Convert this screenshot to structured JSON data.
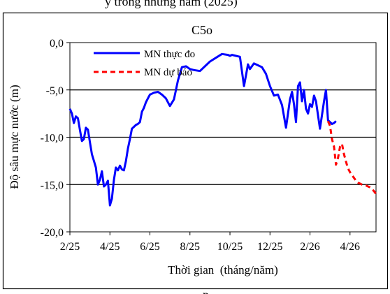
{
  "header": {
    "caption_fragment": "y trong những năm (2025)"
  },
  "footer": {
    "caption_fragment": "p"
  },
  "chart_data": {
    "type": "line",
    "title": "C5o",
    "xlabel": "Thời gian  (tháng/năm)",
    "ylabel": "Độ sâu mực nước (m)",
    "x_tick_labels": [
      "2/25",
      "4/25",
      "6/25",
      "8/25",
      "10/25",
      "12/25",
      "2/26",
      "4/26"
    ],
    "y_tick_labels": [
      "0,0",
      "-5,0",
      "-10,0",
      "-15,0",
      "-20,0"
    ],
    "y_ticks": [
      0,
      -5,
      -10,
      -15,
      -20
    ],
    "ylim": [
      -20,
      0
    ],
    "x_unit": "months since 2/25",
    "xlim": [
      0,
      15.3
    ],
    "grid": "horizontal",
    "legend_position": "top-left",
    "series": [
      {
        "name": "MN thực đo",
        "color": "#0000ff",
        "style": "solid",
        "x": [
          0,
          0.1,
          0.2,
          0.3,
          0.4,
          0.5,
          0.6,
          0.7,
          0.8,
          0.9,
          1.0,
          1.1,
          1.2,
          1.3,
          1.4,
          1.5,
          1.6,
          1.7,
          1.8,
          1.9,
          2.0,
          2.1,
          2.2,
          2.3,
          2.4,
          2.5,
          2.6,
          2.7,
          2.8,
          2.9,
          3.0,
          3.1,
          3.2,
          3.3,
          3.4,
          3.5,
          3.6,
          3.7,
          3.8,
          3.9,
          4.0,
          4.2,
          4.4,
          4.6,
          4.8,
          5.0,
          5.2,
          5.4,
          5.6,
          5.8,
          6.0,
          6.2,
          6.5,
          6.8,
          7.0,
          7.3,
          7.6,
          7.9,
          8.0,
          8.1,
          8.3,
          8.5,
          8.7,
          8.9,
          9.0,
          9.2,
          9.4,
          9.6,
          9.8,
          10.0,
          10.2,
          10.4,
          10.6,
          10.8,
          11.0,
          11.1,
          11.2,
          11.3,
          11.4,
          11.5,
          11.6,
          11.7,
          11.8,
          11.9,
          12.0,
          12.1,
          12.2,
          12.3,
          12.5,
          12.7,
          12.8,
          12.9,
          13.0,
          13.1,
          13.2,
          13.3
        ],
        "values": [
          -7.0,
          -7.5,
          -8.5,
          -7.8,
          -8.0,
          -9.2,
          -10.4,
          -10.2,
          -9.0,
          -9.2,
          -10.5,
          -11.8,
          -12.5,
          -13.2,
          -15.0,
          -14.5,
          -13.6,
          -15.2,
          -15.0,
          -14.6,
          -17.2,
          -16.5,
          -14.5,
          -13.2,
          -13.5,
          -13.0,
          -13.4,
          -13.5,
          -12.5,
          -11.2,
          -10.2,
          -9.1,
          -8.9,
          -8.7,
          -8.6,
          -8.4,
          -7.3,
          -6.9,
          -6.3,
          -5.9,
          -5.5,
          -5.3,
          -5.2,
          -5.5,
          -5.9,
          -6.7,
          -6.0,
          -4.0,
          -2.6,
          -2.5,
          -2.8,
          -2.9,
          -3.0,
          -2.4,
          -2.0,
          -1.6,
          -1.2,
          -1.3,
          -1.4,
          -1.3,
          -1.4,
          -1.5,
          -4.6,
          -2.3,
          -2.8,
          -2.2,
          -2.4,
          -2.6,
          -3.3,
          -4.6,
          -5.6,
          -5.5,
          -6.6,
          -9.0,
          -6.0,
          -5.2,
          -6.5,
          -8.4,
          -4.6,
          -4.2,
          -6.2,
          -5.0,
          -7.0,
          -7.5,
          -6.5,
          -6.8,
          -5.6,
          -6.2,
          -9.1,
          -6.2,
          -5.0,
          -8.2,
          -8.4,
          -8.6,
          -8.5,
          -8.3
        ],
        "x_note": "values sampled along the curve"
      },
      {
        "name": "MN dự báo",
        "color": "#ff0000",
        "style": "dashed",
        "x": [
          12.9,
          13.0,
          13.1,
          13.2,
          13.3,
          13.4,
          13.5,
          13.6,
          13.7,
          13.8,
          13.9,
          14.0,
          14.1,
          14.2,
          14.3,
          14.4,
          14.6,
          14.8,
          15.0,
          15.2,
          15.3
        ],
        "values": [
          -8.3,
          -8.8,
          -10.2,
          -11.0,
          -12.9,
          -12.2,
          -11.0,
          -10.7,
          -11.8,
          -12.6,
          -13.3,
          -13.7,
          -14.0,
          -14.3,
          -14.6,
          -14.8,
          -15.0,
          -15.1,
          -15.3,
          -15.7,
          -16.0
        ]
      }
    ]
  }
}
